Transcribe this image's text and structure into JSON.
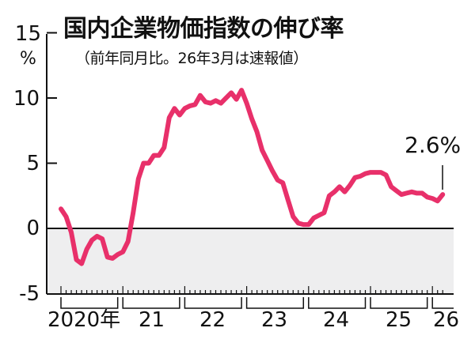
{
  "title": "国内企業物価指数の伸び率",
  "subtitle": "（前年同月比。26年3月は速報値）",
  "callout": "2.6%",
  "colors": {
    "line": "#e8306a",
    "negative_band": "#eeeeef",
    "axis": "#111111"
  },
  "y_axis": {
    "unit": "%",
    "ticks": [
      "15",
      "10",
      "5",
      "0",
      "-5"
    ]
  },
  "x_axis": {
    "labels": [
      "2020年",
      "21",
      "22",
      "23",
      "24",
      "25",
      "26"
    ]
  },
  "chart_data": {
    "type": "line",
    "title": "国内企業物価指数の伸び率",
    "subtitle": "（前年同月比。26年3月は速報値）",
    "xlabel": "",
    "ylabel": "%",
    "ylim": [
      -5,
      15
    ],
    "yticks": [
      -5,
      0,
      5,
      10,
      15
    ],
    "xtick_labels": [
      "2020年",
      "21",
      "22",
      "23",
      "24",
      "25",
      "26"
    ],
    "grid": false,
    "shaded_region": {
      "from": -5,
      "to": 0,
      "color": "#eeeeef"
    },
    "annotation": {
      "text": "2.6%",
      "at": "2026-03"
    },
    "series": [
      {
        "name": "国内企業物価指数 前年同月比",
        "x": [
          "2020-01",
          "2020-02",
          "2020-03",
          "2020-04",
          "2020-05",
          "2020-06",
          "2020-07",
          "2020-08",
          "2020-09",
          "2020-10",
          "2020-11",
          "2020-12",
          "2021-01",
          "2021-02",
          "2021-03",
          "2021-04",
          "2021-05",
          "2021-06",
          "2021-07",
          "2021-08",
          "2021-09",
          "2021-10",
          "2021-11",
          "2021-12",
          "2022-01",
          "2022-02",
          "2022-03",
          "2022-04",
          "2022-05",
          "2022-06",
          "2022-07",
          "2022-08",
          "2022-09",
          "2022-10",
          "2022-11",
          "2022-12",
          "2023-01",
          "2023-02",
          "2023-03",
          "2023-04",
          "2023-05",
          "2023-06",
          "2023-07",
          "2023-08",
          "2023-09",
          "2023-10",
          "2023-11",
          "2023-12",
          "2024-01",
          "2024-02",
          "2024-03",
          "2024-04",
          "2024-05",
          "2024-06",
          "2024-07",
          "2024-08",
          "2024-09",
          "2024-10",
          "2024-11",
          "2024-12",
          "2025-01",
          "2025-02",
          "2025-03",
          "2025-04",
          "2025-05",
          "2025-06",
          "2025-07",
          "2025-08",
          "2025-09",
          "2025-10",
          "2025-11",
          "2025-12",
          "2026-01",
          "2026-02",
          "2026-03"
        ],
        "values": [
          1.5,
          0.9,
          -0.3,
          -2.4,
          -2.7,
          -1.6,
          -0.9,
          -0.6,
          -0.8,
          -2.2,
          -2.3,
          -2.0,
          -1.8,
          -1.0,
          1.2,
          3.8,
          5.0,
          5.0,
          5.6,
          5.6,
          6.2,
          8.5,
          9.2,
          8.7,
          9.2,
          9.4,
          9.5,
          10.2,
          9.7,
          9.6,
          9.8,
          9.6,
          10.0,
          10.4,
          9.9,
          10.6,
          9.6,
          8.4,
          7.4,
          6.0,
          5.2,
          4.4,
          3.7,
          3.5,
          2.2,
          0.9,
          0.4,
          0.3,
          0.3,
          0.8,
          1.0,
          1.2,
          2.5,
          2.8,
          3.2,
          2.8,
          3.3,
          3.9,
          4.0,
          4.2,
          4.3,
          4.3,
          4.3,
          4.1,
          3.2,
          2.9,
          2.6,
          2.7,
          2.8,
          2.7,
          2.7,
          2.4,
          2.3,
          2.1,
          2.6
        ]
      }
    ]
  }
}
